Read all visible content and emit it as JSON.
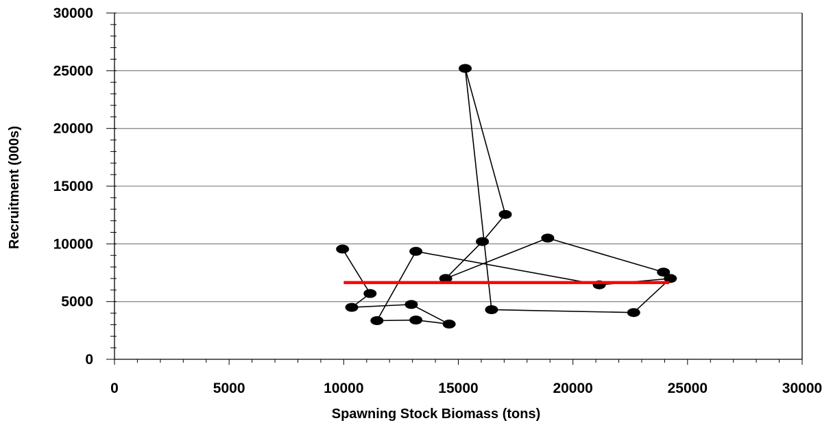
{
  "chart_data": {
    "type": "scatter",
    "title": "",
    "xlabel": "Spawning Stock Biomass (tons)",
    "ylabel": "Recruitment (000s)",
    "xlim": [
      0,
      30000
    ],
    "ylim": [
      0,
      30000
    ],
    "x_ticks": [
      "0",
      "5000",
      "10000",
      "15000",
      "20000",
      "25000",
      "30000"
    ],
    "y_ticks": [
      "0",
      "5000",
      "10000",
      "15000",
      "20000",
      "25000",
      "30000"
    ],
    "grid": "horizontal",
    "legend": "none",
    "series": [
      {
        "marker": "ellipse",
        "connected": true,
        "color": "#000000",
        "x": [
          9950,
          11150,
          10350,
          12950,
          14600,
          13150,
          11450,
          13150,
          21150,
          24250,
          22650,
          16450,
          15300,
          17050,
          16050,
          14450,
          18900,
          23950
        ],
        "y": [
          9550,
          5700,
          4500,
          4750,
          3050,
          3400,
          3350,
          9350,
          6450,
          7000,
          4050,
          4300,
          25200,
          12550,
          10200,
          7000,
          10500,
          7550
        ]
      },
      {
        "marker": "none",
        "connected": true,
        "color": "#ff0000",
        "x": [
          10000,
          24200
        ],
        "y": [
          6650,
          6650
        ]
      }
    ]
  }
}
